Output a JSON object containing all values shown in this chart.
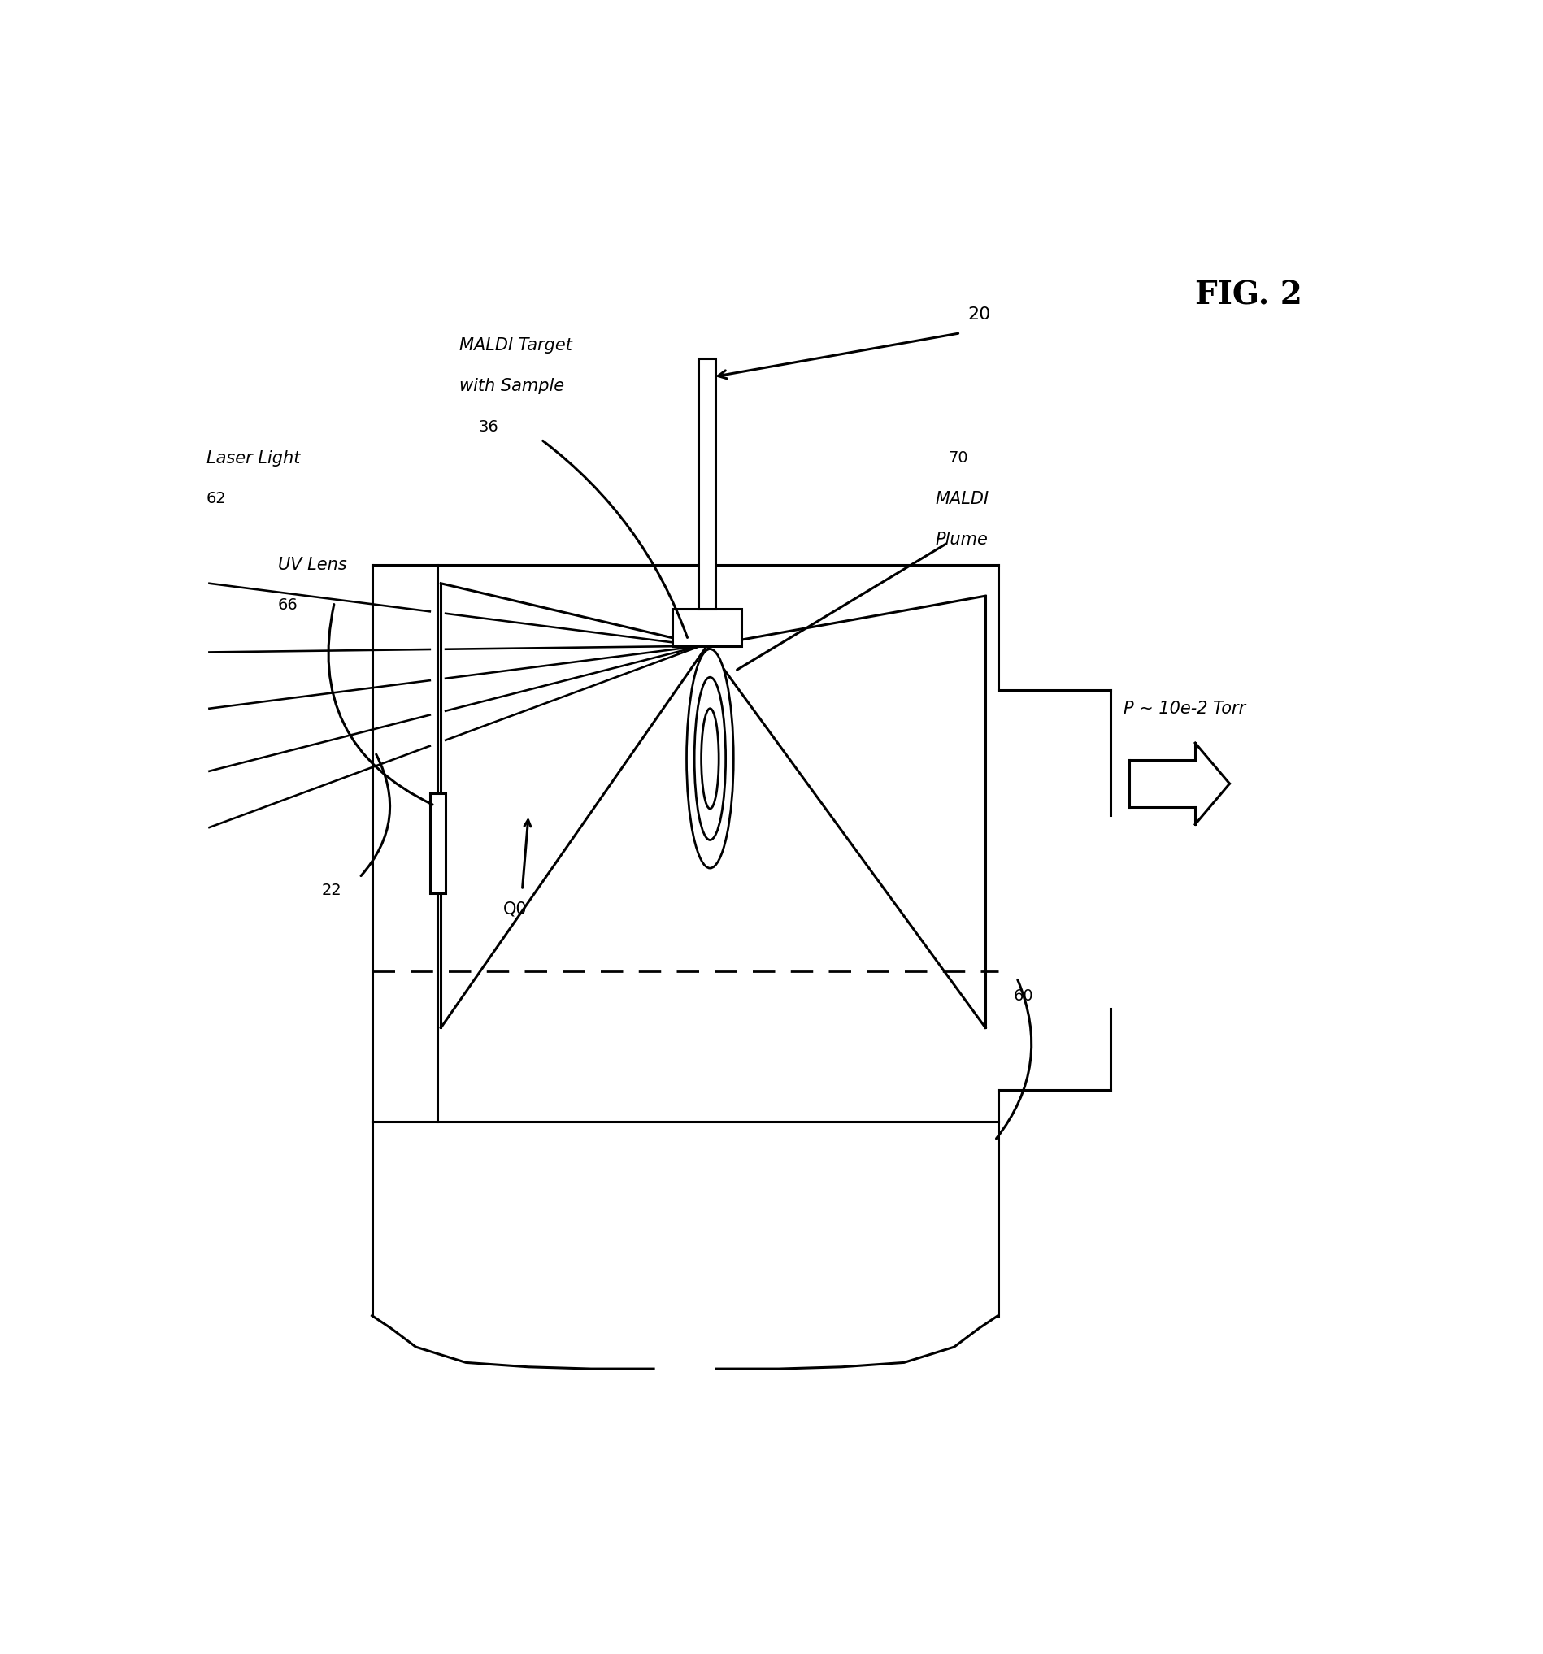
{
  "fig_label": "FIG. 2",
  "background_color": "#ffffff",
  "line_color": "#000000",
  "lw": 2.2,
  "labels": {
    "laser_light": "Laser Light",
    "laser_num": "62",
    "uv_lens": "UV Lens",
    "uv_num": "66",
    "maldi_target_line1": "MALDI Target",
    "maldi_target_line2": "with Sample",
    "maldi_target_num": "36",
    "maldi_plume_line1": "MALDI",
    "maldi_plume_line2": "Plume",
    "maldi_plume_num": "70",
    "q0": "Q0",
    "num_22": "22",
    "num_20": "20",
    "num_60": "60",
    "pressure": "P ~ 10e-2 Torr"
  },
  "fig_label_fontsize": 28,
  "label_fontsize": 15,
  "num_fontsize": 14
}
